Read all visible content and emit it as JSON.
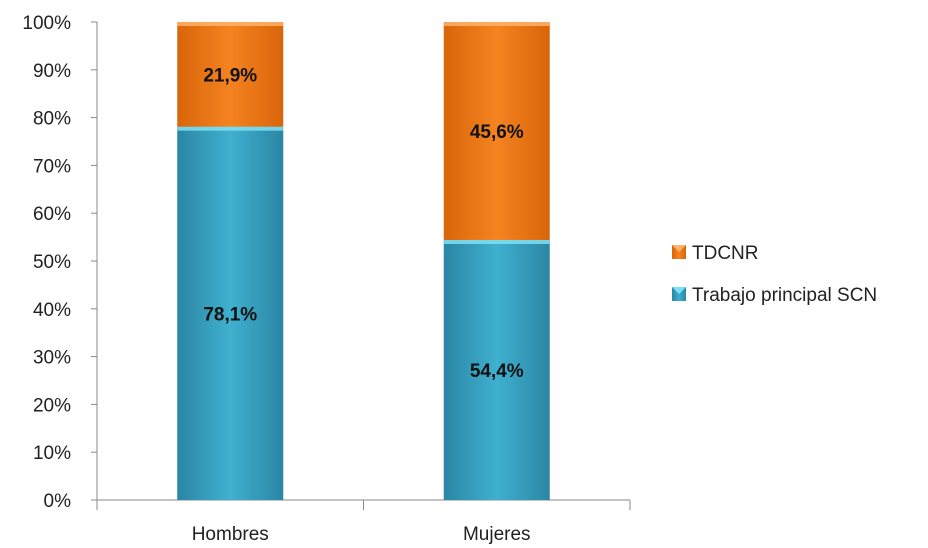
{
  "chart_data": {
    "type": "bar",
    "stacked": true,
    "percent": true,
    "categories": [
      "Hombres",
      "Mujeres"
    ],
    "series": [
      {
        "name": "Trabajo principal SCN",
        "values": [
          78.1,
          54.4
        ],
        "labels": [
          "78,1%",
          "54,4%"
        ],
        "color": "#3aa6c4"
      },
      {
        "name": "TDCNR",
        "values": [
          21.9,
          45.6
        ],
        "labels": [
          "21,9%",
          "45,6%"
        ],
        "color": "#ef7a16"
      }
    ],
    "ylim": [
      0,
      100
    ],
    "yticks": [
      "0%",
      "10%",
      "20%",
      "30%",
      "40%",
      "50%",
      "60%",
      "70%",
      "80%",
      "90%",
      "100%"
    ],
    "grid": false,
    "legend_position": "right",
    "legend_order": [
      "TDCNR",
      "Trabajo principal SCN"
    ]
  }
}
